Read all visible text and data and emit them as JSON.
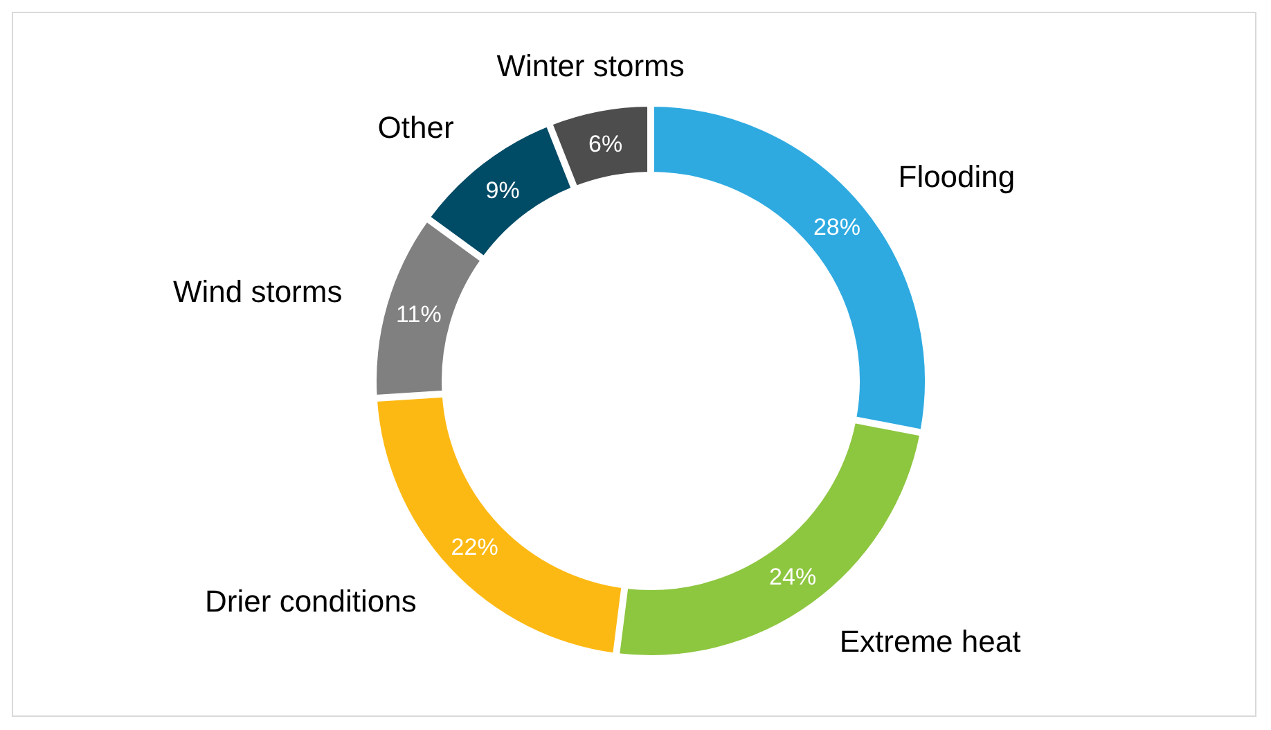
{
  "chart_data": {
    "type": "donut",
    "categories": [
      "Flooding",
      "Extreme heat",
      "Drier conditions",
      "Wind storms",
      "Other",
      "Winter storms"
    ],
    "values": [
      28,
      24,
      22,
      11,
      9,
      6
    ],
    "colors": [
      "#2eaae1",
      "#8dc63f",
      "#fdb913",
      "#808080",
      "#004b66",
      "#4d4d4d"
    ],
    "value_labels": [
      "28%",
      "24%",
      "22%",
      "11%",
      "9%",
      "6%"
    ]
  }
}
